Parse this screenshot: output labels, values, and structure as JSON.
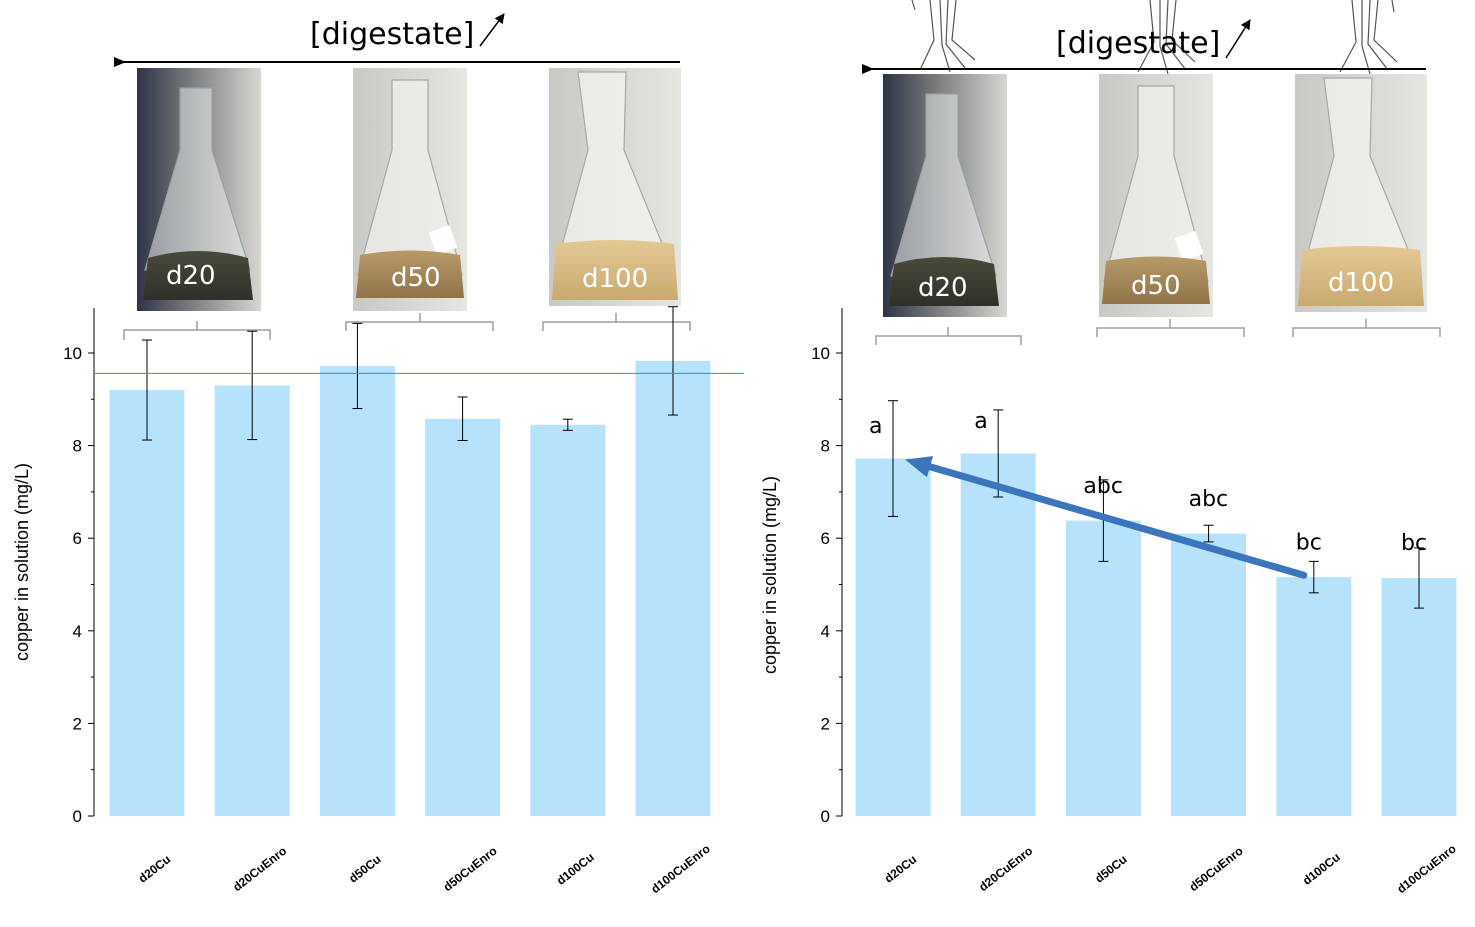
{
  "chart_data": [
    {
      "type": "bar",
      "categories": [
        "d20Cu",
        "d20CuEnro",
        "d50Cu",
        "d50CuEnro",
        "d100Cu",
        "d100CuEnro"
      ],
      "values": [
        9.2,
        9.3,
        9.72,
        8.58,
        8.45,
        9.83
      ],
      "errors": [
        1.08,
        1.17,
        0.92,
        0.47,
        0.12,
        1.17
      ],
      "ylabel": "copper in solution (mg/L)",
      "ylim": [
        0,
        11
      ],
      "yticks": [
        0,
        2,
        4,
        6,
        8,
        10
      ],
      "reference_line": 9.56,
      "header_label": "[digestate]",
      "flask_labels": [
        "d20",
        "d50",
        "d100"
      ],
      "colors": {
        "bar": "#b6e3fb",
        "reference": "#3f8ac8"
      }
    },
    {
      "type": "bar",
      "categories": [
        "d20Cu",
        "d20CuEnro",
        "d50Cu",
        "d50CuEnro",
        "d100Cu",
        "d100CuEnro"
      ],
      "values": [
        7.72,
        7.83,
        6.38,
        6.1,
        5.16,
        5.14
      ],
      "errors": [
        1.25,
        0.94,
        0.88,
        0.18,
        0.34,
        0.65
      ],
      "significance": [
        "a",
        "a",
        "abc",
        "abc",
        "bc",
        "bc"
      ],
      "ylabel": "copper in solution (mg/L)",
      "ylim": [
        0,
        11
      ],
      "yticks": [
        0,
        2,
        4,
        6,
        8,
        10
      ],
      "trend_arrow": {
        "from_category": "d100Cu",
        "from_value": 5.2,
        "to_category": "d20Cu",
        "to_value": 7.7
      },
      "header_label": "[digestate]",
      "flask_labels": [
        "d20",
        "d50",
        "d100"
      ],
      "colors": {
        "bar": "#b6e3fb",
        "arrow": "#3b76bd"
      }
    }
  ]
}
